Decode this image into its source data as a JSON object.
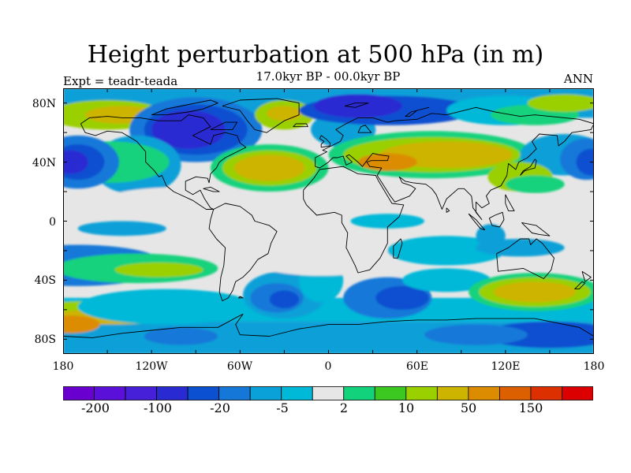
{
  "title": "Height perturbation at 500 hPa (in m)",
  "subtitle": "17.0kyr BP - 00.0kyr BP",
  "experiment": "Expt = teadr-teada",
  "season": "ANN",
  "lat_labels": [
    "80N",
    "40N",
    "0",
    "40S",
    "80S"
  ],
  "lon_labels": [
    "180",
    "120W",
    "60W",
    "0",
    "60E",
    "120E",
    "180"
  ],
  "colorbar": {
    "labels": [
      "-200",
      "-100",
      "-20",
      "-5",
      "2",
      "10",
      "50",
      "150"
    ],
    "colors": [
      "#6a00d0",
      "#5a10d8",
      "#4520d8",
      "#2a2ad2",
      "#0a50d0",
      "#1578d8",
      "#0aa0d8",
      "#00b8d8",
      "#e6e6e6",
      "#12d27c",
      "#3cc820",
      "#9ad000",
      "#ccb400",
      "#dc8c00",
      "#dc6000",
      "#dc3000",
      "#dc0000"
    ]
  },
  "palette": {
    "neutral": "#e6e6e6",
    "cyan": "#00b8d8",
    "light_blue": "#0aa0d8",
    "blue": "#1578d8",
    "mid_blue": "#0a50d0",
    "dark_blue": "#2a2ad2",
    "green": "#12d27c",
    "lime": "#9ad000",
    "gold": "#ccb400",
    "orange": "#dc8c00"
  }
}
